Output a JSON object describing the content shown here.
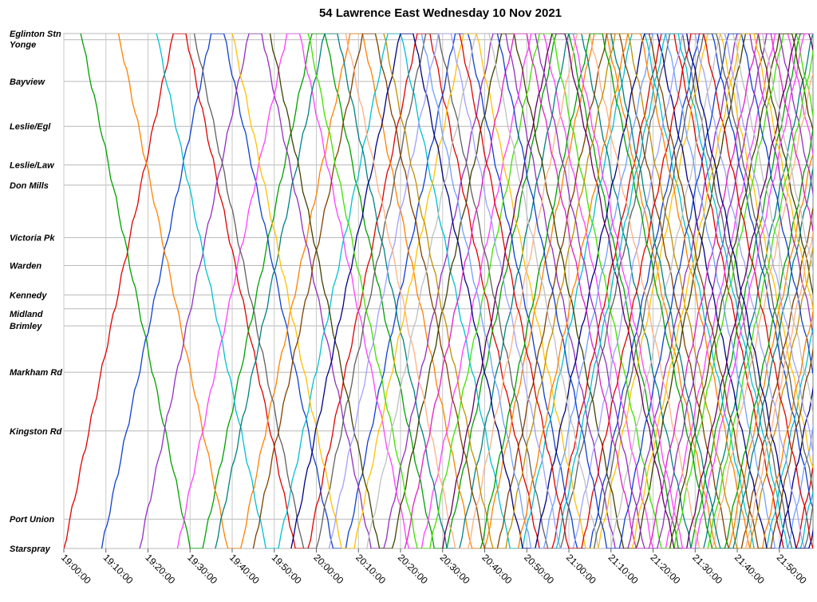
{
  "chart_data": {
    "type": "line",
    "title": "54 Lawrence East Wednesday 10 Nov 2021",
    "xlabel": "",
    "ylabel": "",
    "x_range": [
      "19:00:00",
      "21:58:00"
    ],
    "x_ticks": [
      "19:00:00",
      "19:10:00",
      "19:20:00",
      "19:30:00",
      "19:40:00",
      "19:50:00",
      "20:00:00",
      "20:10:00",
      "20:20:00",
      "20:30:00",
      "20:40:00",
      "20:50:00",
      "21:00:00",
      "21:10:00",
      "21:20:00",
      "21:30:00",
      "21:40:00",
      "21:50:00"
    ],
    "stops": [
      {
        "name": "Eglinton Stn",
        "pos": 0.0
      },
      {
        "name": "Yonge",
        "pos": 0.4
      },
      {
        "name": "Bayview",
        "pos": 3.1
      },
      {
        "name": "Leslie/Egl",
        "pos": 6.0
      },
      {
        "name": "Leslie/Law",
        "pos": 8.5
      },
      {
        "name": "Don Mills",
        "pos": 9.8
      },
      {
        "name": "Victoria Pk",
        "pos": 13.2
      },
      {
        "name": "Warden",
        "pos": 15.0
      },
      {
        "name": "Kennedy",
        "pos": 16.9
      },
      {
        "name": "Midland",
        "pos": 17.8
      },
      {
        "name": "Brimley",
        "pos": 18.9
      },
      {
        "name": "Markham Rd",
        "pos": 21.9
      },
      {
        "name": "Kingston Rd",
        "pos": 25.7
      },
      {
        "name": "Port Union",
        "pos": 31.4
      },
      {
        "name": "Starspray",
        "pos": 33.3
      }
    ],
    "grid": true,
    "legend": "none",
    "colors": [
      "#e00000",
      "#00a000",
      "#1040d0",
      "#ff8000",
      "#9030c0",
      "#00c0d0",
      "#ff40ff",
      "#606060",
      "#008080",
      "#ffc000",
      "#804000",
      "#404000",
      "#000080",
      "#40e000",
      "#a0a0ff",
      "#ffb080",
      "#c0c0c0",
      "#c09000",
      "#e020c0",
      "#70a0ff",
      "#600060"
    ],
    "series": [
      {
        "start": "19:00:00",
        "from": "Starspray"
      },
      {
        "start": "19:04:00",
        "from": "Eglinton Stn"
      },
      {
        "start": "19:09:00",
        "from": "Starspray"
      },
      {
        "start": "19:13:00",
        "from": "Eglinton Stn"
      },
      {
        "start": "19:18:00",
        "from": "Starspray"
      },
      {
        "start": "19:22:00",
        "from": "Eglinton Stn"
      },
      {
        "start": "19:27:00",
        "from": "Starspray"
      },
      {
        "start": "19:31:00",
        "from": "Eglinton Stn"
      },
      {
        "start": "19:36:00",
        "from": "Starspray"
      },
      {
        "start": "19:40:00",
        "from": "Eglinton Stn"
      },
      {
        "start": "19:45:00",
        "from": "Starspray"
      },
      {
        "start": "19:49:00",
        "from": "Eglinton Stn"
      },
      {
        "start": "19:54:00",
        "from": "Starspray"
      },
      {
        "start": "19:58:00",
        "from": "Eglinton Stn"
      },
      {
        "start": "20:03:00",
        "from": "Starspray"
      },
      {
        "start": "20:07:00",
        "from": "Eglinton Stn"
      },
      {
        "start": "20:12:00",
        "from": "Starspray"
      },
      {
        "start": "20:16:00",
        "from": "Eglinton Stn"
      },
      {
        "start": "20:21:00",
        "from": "Starspray"
      },
      {
        "start": "20:25:00",
        "from": "Eglinton Stn"
      },
      {
        "start": "20:30:00",
        "from": "Starspray"
      },
      {
        "start": "20:34:00",
        "from": "Eglinton Stn"
      },
      {
        "start": "20:39:00",
        "from": "Starspray"
      },
      {
        "start": "20:43:00",
        "from": "Eglinton Stn"
      },
      {
        "start": "20:48:00",
        "from": "Starspray"
      },
      {
        "start": "20:52:00",
        "from": "Eglinton Stn"
      },
      {
        "start": "20:57:00",
        "from": "Starspray"
      },
      {
        "start": "21:01:00",
        "from": "Eglinton Stn"
      },
      {
        "start": "21:06:00",
        "from": "Starspray"
      },
      {
        "start": "21:10:00",
        "from": "Eglinton Stn"
      },
      {
        "start": "21:15:00",
        "from": "Starspray"
      },
      {
        "start": "21:19:00",
        "from": "Eglinton Stn"
      },
      {
        "start": "21:24:00",
        "from": "Starspray"
      },
      {
        "start": "21:28:00",
        "from": "Eglinton Stn"
      },
      {
        "start": "21:33:00",
        "from": "Starspray"
      },
      {
        "start": "21:37:00",
        "from": "Eglinton Stn"
      },
      {
        "start": "21:42:00",
        "from": "Starspray"
      },
      {
        "start": "21:46:00",
        "from": "Eglinton Stn"
      }
    ]
  }
}
